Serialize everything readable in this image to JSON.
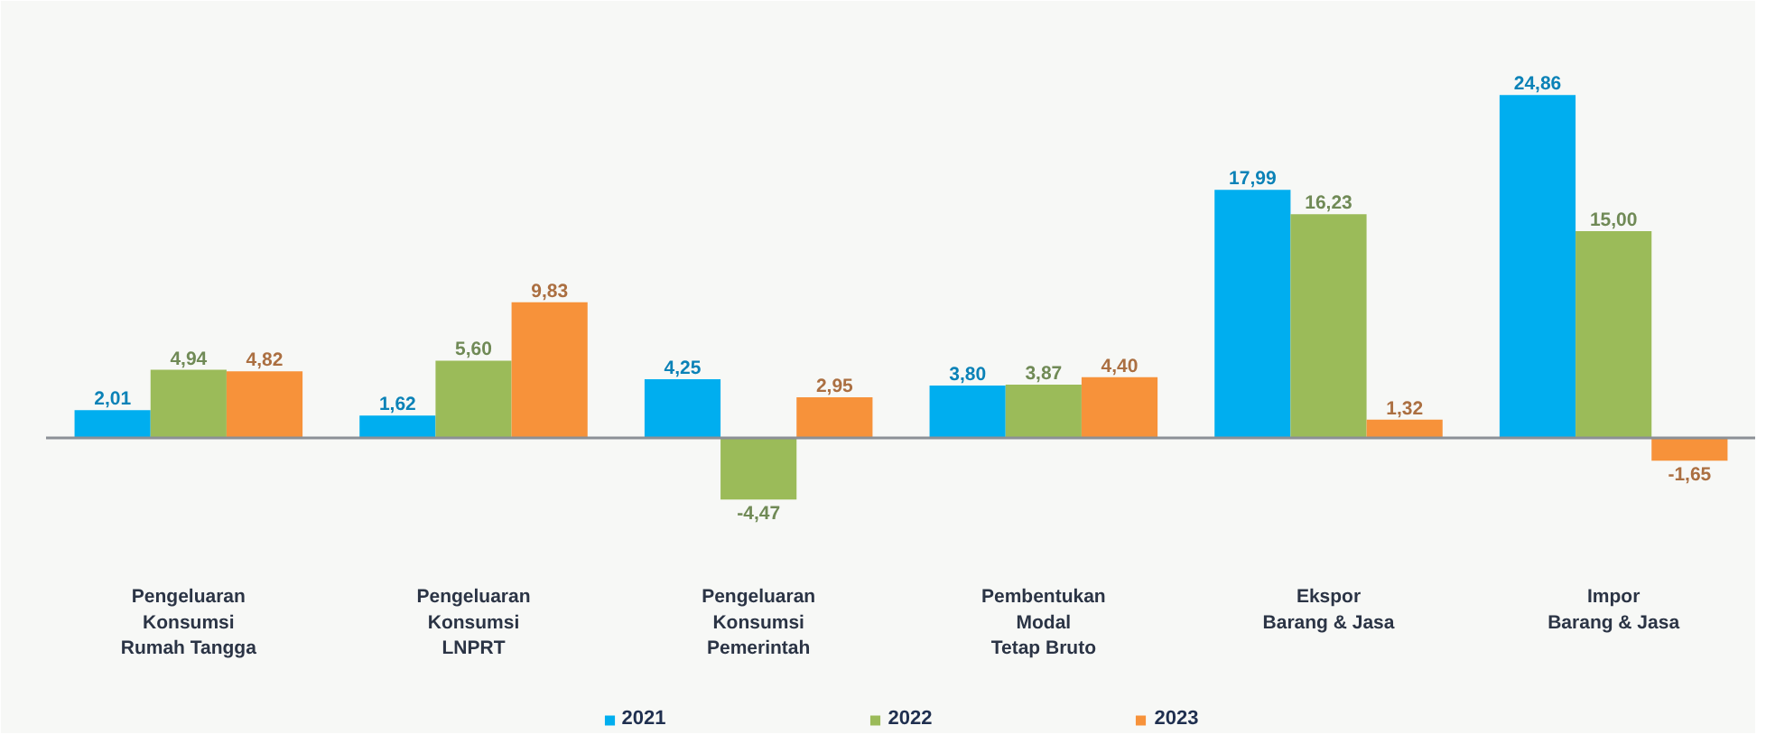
{
  "chart_data": {
    "type": "bar",
    "categories": [
      "Pengeluaran\nKonsumsi\nRumah Tangga",
      "Pengeluaran\nKonsumsi\nLNPRT",
      "Pengeluaran\nKonsumsi\nPemerintah",
      "Pembentukan\nModal\nTetap Bruto",
      "Ekspor\nBarang & Jasa",
      "Impor\nBarang & Jasa"
    ],
    "series": [
      {
        "name": "2021",
        "color": "#00aeef",
        "values": [
          2.01,
          1.62,
          4.25,
          3.8,
          17.99,
          24.86
        ],
        "value_labels": [
          "2,01",
          "1,62",
          "4,25",
          "3,80",
          "17,99",
          "24,86"
        ]
      },
      {
        "name": "2022",
        "color": "#9bbb59",
        "values": [
          4.94,
          5.6,
          -4.47,
          3.87,
          16.23,
          15.0
        ],
        "value_labels": [
          "4,94",
          "5,60",
          "-4,47",
          "3,87",
          "16,23",
          "15,00"
        ]
      },
      {
        "name": "2023",
        "color": "#f7923a",
        "values": [
          4.82,
          9.83,
          2.95,
          4.4,
          1.32,
          -1.65
        ],
        "value_labels": [
          "4,82",
          "9,83",
          "2,95",
          "4,40",
          "1,32",
          "-1,65"
        ]
      }
    ],
    "legend": "bottom"
  }
}
